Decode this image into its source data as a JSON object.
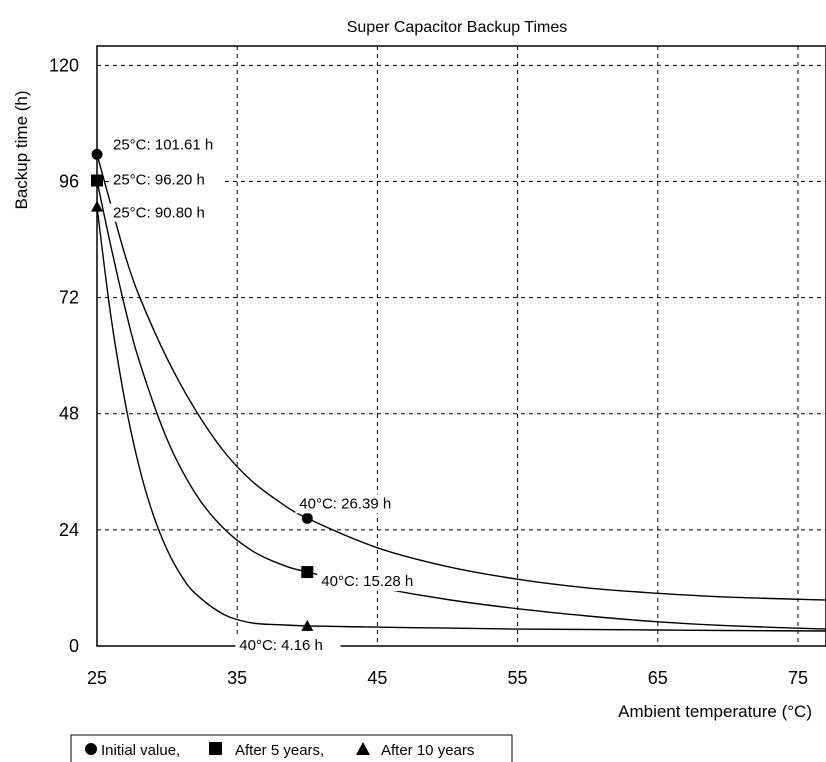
{
  "chart_data": {
    "type": "line",
    "title": "Super Capacitor Backup Times",
    "xlabel": "Ambient temperature (°C)",
    "ylabel": "Backup time (h)",
    "xlim": [
      25,
      77
    ],
    "ylim": [
      0,
      124
    ],
    "xticks": [
      25,
      35,
      45,
      55,
      65,
      75
    ],
    "yticks": [
      0,
      24,
      48,
      72,
      96,
      120
    ],
    "grid": true,
    "legend_position": "bottom-left",
    "legend": {
      "entries": [
        {
          "marker": "circle",
          "text": "Initial value,"
        },
        {
          "marker": "square",
          "text": "After 5 years,"
        },
        {
          "marker": "triangle",
          "text": "After 10 years"
        }
      ]
    },
    "series": [
      {
        "marker": "circle",
        "points": [
          {
            "x": 25,
            "y": 101.61,
            "label": "25°C: 101.61 h"
          },
          {
            "x": 40,
            "y": 26.39,
            "label": "40°C: 26.39 h"
          }
        ],
        "curve_x": [
          25,
          26,
          27,
          28,
          30,
          32,
          34,
          36,
          38,
          40,
          45,
          50,
          55,
          60,
          65,
          70,
          77
        ],
        "curve_y": [
          101.61,
          91.1,
          80.8,
          72.4,
          59.4,
          48.9,
          40.4,
          34.2,
          29.8,
          26.39,
          20.3,
          16.4,
          13.8,
          12.0,
          10.9,
          10.1,
          9.5
        ]
      },
      {
        "marker": "square",
        "points": [
          {
            "x": 25,
            "y": 96.2,
            "label": "25°C: 96.20 h"
          },
          {
            "x": 40,
            "y": 15.28,
            "label": "40°C: 15.28 h"
          }
        ],
        "curve_x": [
          25,
          26,
          27,
          28,
          30,
          32,
          34,
          36,
          38,
          40,
          45,
          50,
          55,
          60,
          65,
          70,
          77
        ],
        "curve_y": [
          96.2,
          82.5,
          69.9,
          59.0,
          42.7,
          31.6,
          24.4,
          19.8,
          17.0,
          15.28,
          12.1,
          9.6,
          7.7,
          6.2,
          5.0,
          4.2,
          3.5
        ]
      },
      {
        "marker": "triangle",
        "points": [
          {
            "x": 25,
            "y": 90.8,
            "label": "25°C: 90.80 h"
          },
          {
            "x": 40,
            "y": 4.16,
            "label": "40°C: 4.16 h"
          }
        ],
        "curve_x": [
          25,
          26,
          27,
          28,
          29,
          30,
          31,
          32,
          34,
          36,
          38,
          40,
          45,
          50,
          55,
          60,
          65,
          70,
          77
        ],
        "curve_y": [
          90.8,
          68.0,
          50.5,
          37.1,
          27.2,
          19.9,
          14.6,
          10.9,
          6.6,
          4.8,
          4.4,
          4.16,
          3.9,
          3.7,
          3.5,
          3.4,
          3.3,
          3.2,
          3.1
        ]
      }
    ]
  }
}
